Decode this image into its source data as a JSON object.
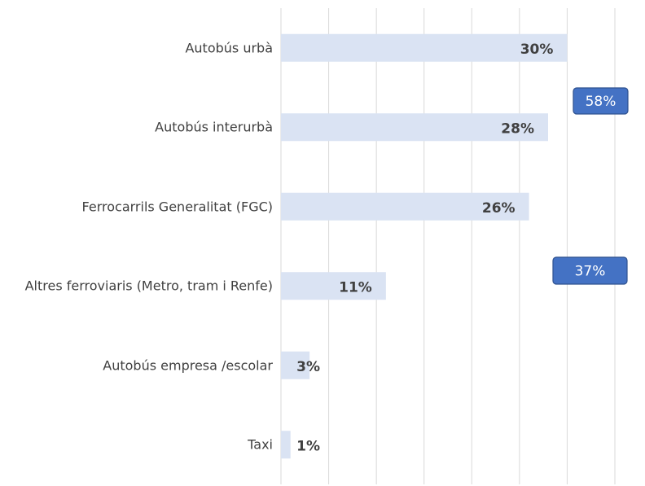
{
  "chart_data": {
    "type": "bar",
    "orientation": "horizontal",
    "categories": [
      "Autobús urbà",
      "Autobús interurbà",
      "Ferrocarrils Generalitat (FGC)",
      "Altres ferroviaris (Metro, tram i Renfe)",
      "Autobús empresa /escolar",
      "Taxi"
    ],
    "values": [
      30,
      28,
      26,
      11,
      3,
      1
    ],
    "value_labels": [
      "30%",
      "28%",
      "26%",
      "11%",
      "3%",
      "1%"
    ],
    "color": "#dae3f3",
    "xlim": [
      0,
      35
    ],
    "xticks": [
      0,
      5,
      10,
      15,
      20,
      25,
      30,
      35
    ],
    "grid": true,
    "annotations": [
      "58%",
      "37%"
    ],
    "annotation_color": "#4472c4"
  }
}
